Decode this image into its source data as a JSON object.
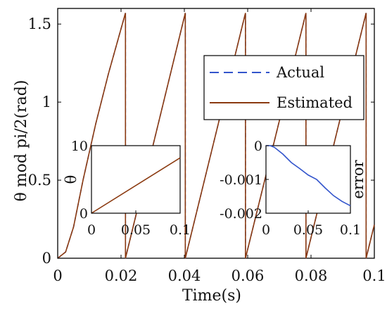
{
  "chart_data": [
    {
      "type": "line",
      "xlabel": "Time(s)",
      "ylabel": "θ mod pi/2(rad)",
      "xlim": [
        0,
        0.1
      ],
      "ylim": [
        0,
        1.6
      ],
      "xticks": [
        "0",
        "0.02",
        "0.04",
        "0.06",
        "0.08",
        "0.1"
      ],
      "yticks": [
        "0",
        "0.5",
        "1",
        "1.5"
      ],
      "legend_position": "upper-right",
      "sawtooth": {
        "start_time": 0.0,
        "wrap_times": [
          0.0214,
          0.0403,
          0.0593,
          0.0784,
          0.0974
        ],
        "wrap_value": 1.5708,
        "initial_ramp": [
          [
            0,
            0
          ],
          [
            0.0025,
            0.04
          ],
          [
            0.005,
            0.2
          ],
          [
            0.008,
            0.5
          ],
          [
            0.012,
            0.86
          ],
          [
            0.016,
            1.18
          ],
          [
            0.0214,
            1.5708
          ]
        ]
      },
      "series": [
        {
          "name": "Actual",
          "color": "#3355cc",
          "dash": "dashed"
        },
        {
          "name": "Estimated",
          "color": "#8b3a10",
          "dash": "solid"
        }
      ]
    },
    {
      "type": "line",
      "ylabel": "θ",
      "xlim": [
        0,
        0.1
      ],
      "ylim": [
        0,
        10
      ],
      "xticks": [
        "0",
        "0.05",
        "0.1"
      ],
      "yticks": [
        "0",
        "10"
      ],
      "series": [
        {
          "color": "#8b3a10",
          "x": [
            0,
            0.1
          ],
          "y": [
            0,
            8.2
          ]
        }
      ]
    },
    {
      "type": "line",
      "ylabel": "error",
      "xlim": [
        0,
        0.1
      ],
      "ylim": [
        -0.002,
        0
      ],
      "xticks": [
        "0",
        "0.05",
        "0.1"
      ],
      "yticks": [
        "0",
        "-0.001",
        "-0.002"
      ],
      "series": [
        {
          "color": "#3355cc",
          "x": [
            0,
            0.005,
            0.01,
            0.02,
            0.03,
            0.04,
            0.05,
            0.06,
            0.07,
            0.08,
            0.09,
            0.1
          ],
          "y": [
            0,
            0,
            -5e-05,
            -0.00025,
            -0.0005,
            -0.00068,
            -0.00087,
            -0.001,
            -0.00125,
            -0.00148,
            -0.00165,
            -0.00178
          ]
        }
      ]
    }
  ]
}
